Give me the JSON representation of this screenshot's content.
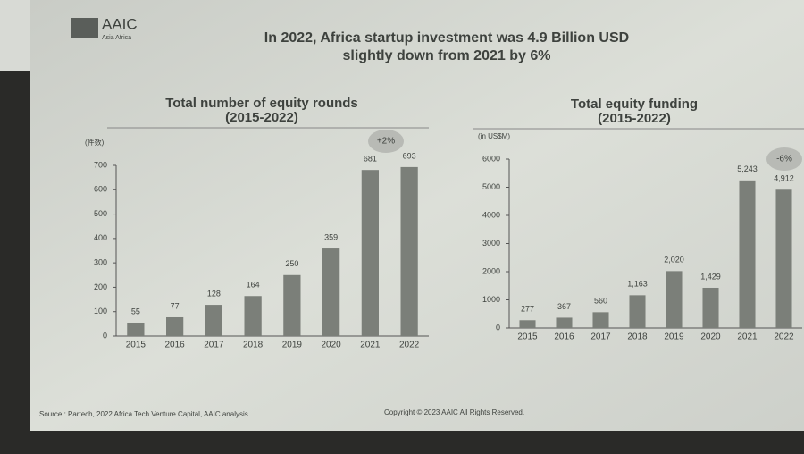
{
  "header": {
    "logo": "AAIC",
    "logo_sub": "Asia Africa",
    "title": "In 2022, Africa startup investment was 4.9 Billion USD",
    "subtitle": "slightly down from 2021 by 6%"
  },
  "footer": {
    "source": "Source : Partech, 2022 Africa Tech Venture Capital, AAIC analysis",
    "copyright": "Copyright © 2023 AAIC All Rights Reserved."
  },
  "chart_data": [
    {
      "type": "bar",
      "title": "Total number of equity rounds",
      "subtitle": "(2015-2022)",
      "y_label": "(件数)",
      "categories": [
        "2015",
        "2016",
        "2017",
        "2018",
        "2019",
        "2020",
        "2021",
        "2022"
      ],
      "values": [
        55,
        77,
        128,
        164,
        250,
        359,
        681,
        693
      ],
      "color": "#7b7f79",
      "ylim": [
        0,
        700
      ],
      "yticks": [
        0,
        100,
        200,
        300,
        400,
        500,
        600,
        700
      ],
      "annotation": "+2%"
    },
    {
      "type": "bar",
      "title": "Total equity funding",
      "subtitle": "(2015-2022)",
      "y_label": "(in US$M)",
      "categories": [
        "2015",
        "2016",
        "2017",
        "2018",
        "2019",
        "2020",
        "2021",
        "2022"
      ],
      "values": [
        277,
        367,
        560,
        1163,
        2020,
        1429,
        5243,
        4912
      ],
      "value_labels": [
        "277",
        "367",
        "560",
        "1,163",
        "2,020",
        "1,429",
        "5,243",
        "4,912"
      ],
      "color": "#7b7f79",
      "ylim": [
        0,
        6000
      ],
      "yticks": [
        0,
        1000,
        2000,
        3000,
        4000,
        5000,
        6000
      ],
      "annotation": "-6%"
    }
  ]
}
